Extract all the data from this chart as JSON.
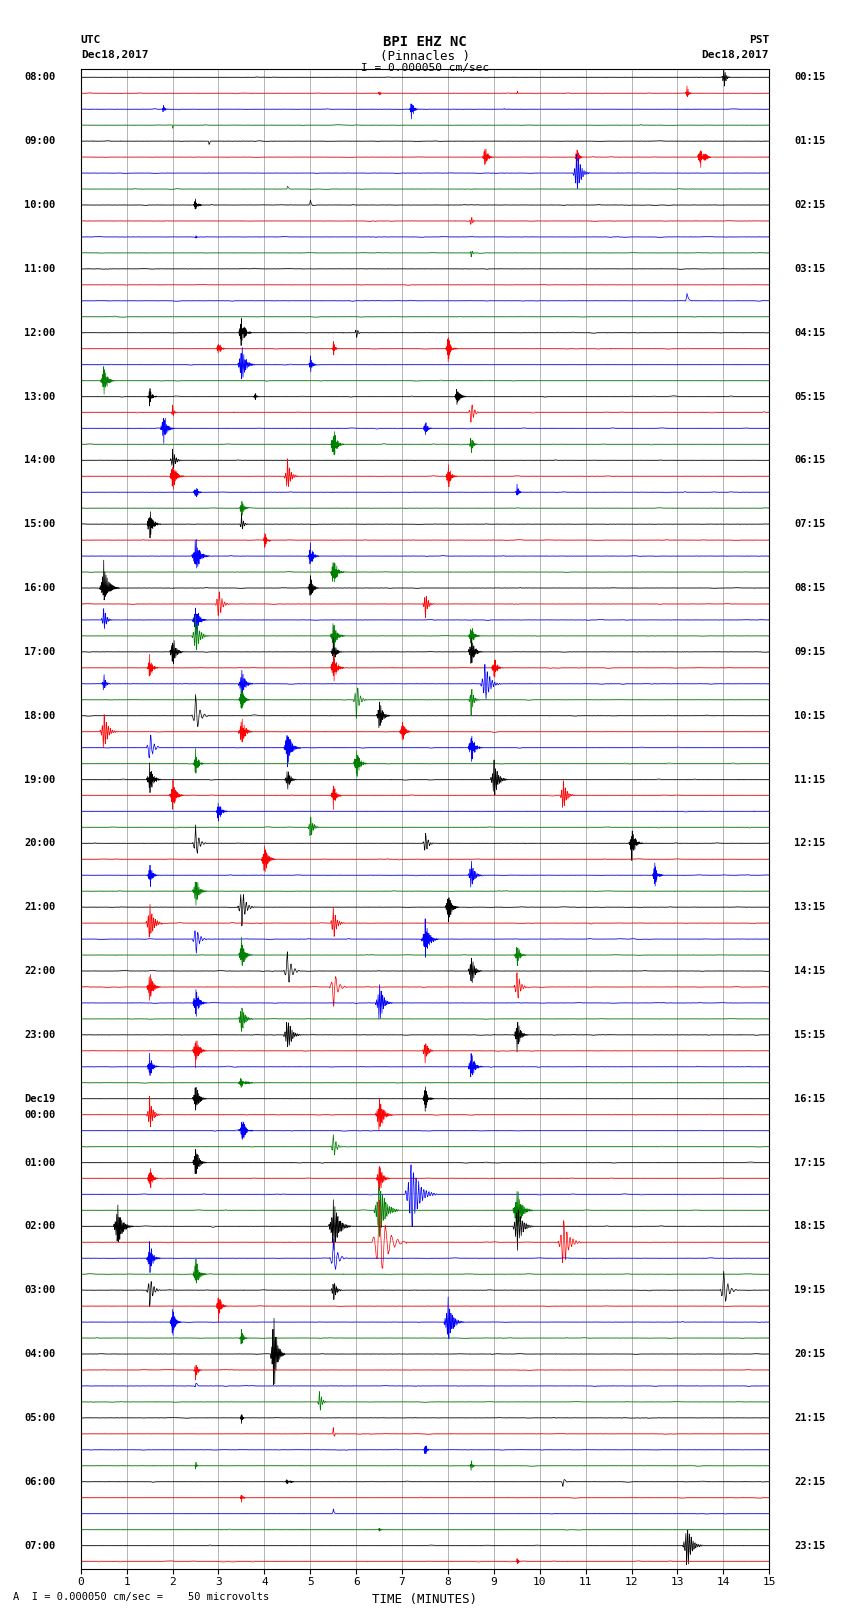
{
  "title_line1": "BPI EHZ NC",
  "title_line2": "(Pinnacles )",
  "scale_text": "I = 0.000050 cm/sec",
  "left_header_line1": "UTC",
  "left_header_line2": "Dec18,2017",
  "right_header_line1": "PST",
  "right_header_line2": "Dec18,2017",
  "footer_text": "A  I = 0.000050 cm/sec =    50 microvolts",
  "xlabel": "TIME (MINUTES)",
  "left_times": [
    "08:00",
    "",
    "",
    "",
    "09:00",
    "",
    "",
    "",
    "10:00",
    "",
    "",
    "",
    "11:00",
    "",
    "",
    "",
    "12:00",
    "",
    "",
    "",
    "13:00",
    "",
    "",
    "",
    "14:00",
    "",
    "",
    "",
    "15:00",
    "",
    "",
    "",
    "16:00",
    "",
    "",
    "",
    "17:00",
    "",
    "",
    "",
    "18:00",
    "",
    "",
    "",
    "19:00",
    "",
    "",
    "",
    "20:00",
    "",
    "",
    "",
    "21:00",
    "",
    "",
    "",
    "22:00",
    "",
    "",
    "",
    "23:00",
    "",
    "",
    "",
    "Dec19",
    "00:00",
    "",
    "",
    "01:00",
    "",
    "",
    "",
    "02:00",
    "",
    "",
    "",
    "03:00",
    "",
    "",
    "",
    "04:00",
    "",
    "",
    "",
    "05:00",
    "",
    "",
    "",
    "06:00",
    "",
    "",
    "",
    "07:00",
    ""
  ],
  "right_times": [
    "00:15",
    "",
    "",
    "",
    "01:15",
    "",
    "",
    "",
    "02:15",
    "",
    "",
    "",
    "03:15",
    "",
    "",
    "",
    "04:15",
    "",
    "",
    "",
    "05:15",
    "",
    "",
    "",
    "06:15",
    "",
    "",
    "",
    "07:15",
    "",
    "",
    "",
    "08:15",
    "",
    "",
    "",
    "09:15",
    "",
    "",
    "",
    "10:15",
    "",
    "",
    "",
    "11:15",
    "",
    "",
    "",
    "12:15",
    "",
    "",
    "",
    "13:15",
    "",
    "",
    "",
    "14:15",
    "",
    "",
    "",
    "15:15",
    "",
    "",
    "",
    "16:15",
    "",
    "",
    "",
    "17:15",
    "",
    "",
    "",
    "18:15",
    "",
    "",
    "",
    "19:15",
    "",
    "",
    "",
    "20:15",
    "",
    "",
    "",
    "21:15",
    "",
    "",
    "",
    "22:15",
    "",
    "",
    "",
    "23:15",
    ""
  ],
  "num_rows": 94,
  "colors": [
    "black",
    "red",
    "blue",
    "green"
  ],
  "bg_color": "#ffffff",
  "grid_color": "#999999",
  "seed": 12345,
  "events": [
    {
      "row": 0,
      "t": 14.0,
      "amp": 1.8,
      "dur": 0.15
    },
    {
      "row": 1,
      "t": 6.5,
      "amp": 0.6,
      "dur": 0.08
    },
    {
      "row": 1,
      "t": 9.5,
      "amp": 0.5,
      "dur": 0.06
    },
    {
      "row": 1,
      "t": 13.2,
      "amp": 1.2,
      "dur": 0.12
    },
    {
      "row": 2,
      "t": 1.8,
      "amp": 0.8,
      "dur": 0.1
    },
    {
      "row": 2,
      "t": 7.2,
      "amp": 1.5,
      "dur": 0.18
    },
    {
      "row": 3,
      "t": 2.0,
      "amp": 0.5,
      "dur": 0.06
    },
    {
      "row": 4,
      "t": 2.8,
      "amp": 0.6,
      "dur": 0.08
    },
    {
      "row": 5,
      "t": 8.8,
      "amp": 1.8,
      "dur": 0.2
    },
    {
      "row": 5,
      "t": 10.8,
      "amp": 1.5,
      "dur": 0.15
    },
    {
      "row": 5,
      "t": 13.5,
      "amp": 2.5,
      "dur": 0.25
    },
    {
      "row": 6,
      "t": 10.8,
      "amp": 3.5,
      "dur": 0.3
    },
    {
      "row": 7,
      "t": 4.5,
      "amp": 0.7,
      "dur": 0.08
    },
    {
      "row": 8,
      "t": 2.5,
      "amp": 1.5,
      "dur": 0.15
    },
    {
      "row": 8,
      "t": 5.0,
      "amp": 0.8,
      "dur": 0.1
    },
    {
      "row": 9,
      "t": 8.5,
      "amp": 1.0,
      "dur": 0.12
    },
    {
      "row": 10,
      "t": 2.5,
      "amp": 0.5,
      "dur": 0.06
    },
    {
      "row": 11,
      "t": 8.5,
      "amp": 0.8,
      "dur": 0.1
    },
    {
      "row": 14,
      "t": 13.2,
      "amp": 1.2,
      "dur": 0.12
    },
    {
      "row": 16,
      "t": 3.5,
      "amp": 2.5,
      "dur": 0.25
    },
    {
      "row": 16,
      "t": 6.0,
      "amp": 1.0,
      "dur": 0.12
    },
    {
      "row": 17,
      "t": 3.0,
      "amp": 1.5,
      "dur": 0.15
    },
    {
      "row": 17,
      "t": 5.5,
      "amp": 1.2,
      "dur": 0.12
    },
    {
      "row": 17,
      "t": 8.0,
      "amp": 2.0,
      "dur": 0.2
    },
    {
      "row": 18,
      "t": 3.5,
      "amp": 3.0,
      "dur": 0.3
    },
    {
      "row": 18,
      "t": 5.0,
      "amp": 1.5,
      "dur": 0.15
    },
    {
      "row": 19,
      "t": 0.5,
      "amp": 2.5,
      "dur": 0.25
    },
    {
      "row": 20,
      "t": 1.5,
      "amp": 1.5,
      "dur": 0.18
    },
    {
      "row": 20,
      "t": 3.8,
      "amp": 0.8,
      "dur": 0.1
    },
    {
      "row": 20,
      "t": 8.2,
      "amp": 1.8,
      "dur": 0.2
    },
    {
      "row": 21,
      "t": 2.0,
      "amp": 1.0,
      "dur": 0.12
    },
    {
      "row": 21,
      "t": 8.5,
      "amp": 2.0,
      "dur": 0.2
    },
    {
      "row": 22,
      "t": 1.8,
      "amp": 2.5,
      "dur": 0.25
    },
    {
      "row": 22,
      "t": 7.5,
      "amp": 1.5,
      "dur": 0.15
    },
    {
      "row": 23,
      "t": 5.5,
      "amp": 2.5,
      "dur": 0.25
    },
    {
      "row": 23,
      "t": 8.5,
      "amp": 1.5,
      "dur": 0.15
    },
    {
      "row": 24,
      "t": 2.0,
      "amp": 2.0,
      "dur": 0.2
    },
    {
      "row": 25,
      "t": 2.0,
      "amp": 2.5,
      "dur": 0.25
    },
    {
      "row": 25,
      "t": 4.5,
      "amp": 2.5,
      "dur": 0.25
    },
    {
      "row": 25,
      "t": 8.0,
      "amp": 2.0,
      "dur": 0.2
    },
    {
      "row": 26,
      "t": 2.5,
      "amp": 1.5,
      "dur": 0.15
    },
    {
      "row": 26,
      "t": 9.5,
      "amp": 1.2,
      "dur": 0.12
    },
    {
      "row": 27,
      "t": 3.5,
      "amp": 1.8,
      "dur": 0.18
    },
    {
      "row": 28,
      "t": 1.5,
      "amp": 2.5,
      "dur": 0.25
    },
    {
      "row": 28,
      "t": 3.5,
      "amp": 1.5,
      "dur": 0.15
    },
    {
      "row": 29,
      "t": 4.0,
      "amp": 1.5,
      "dur": 0.15
    },
    {
      "row": 30,
      "t": 2.5,
      "amp": 3.0,
      "dur": 0.3
    },
    {
      "row": 30,
      "t": 5.0,
      "amp": 2.0,
      "dur": 0.2
    },
    {
      "row": 31,
      "t": 5.5,
      "amp": 2.5,
      "dur": 0.25
    },
    {
      "row": 32,
      "t": 0.5,
      "amp": 3.5,
      "dur": 0.35
    },
    {
      "row": 32,
      "t": 5.0,
      "amp": 2.0,
      "dur": 0.2
    },
    {
      "row": 33,
      "t": 3.0,
      "amp": 2.5,
      "dur": 0.25
    },
    {
      "row": 33,
      "t": 7.5,
      "amp": 2.0,
      "dur": 0.2
    },
    {
      "row": 34,
      "t": 0.5,
      "amp": 2.0,
      "dur": 0.2
    },
    {
      "row": 34,
      "t": 2.5,
      "amp": 2.5,
      "dur": 0.25
    },
    {
      "row": 35,
      "t": 2.5,
      "amp": 3.0,
      "dur": 0.3
    },
    {
      "row": 35,
      "t": 5.5,
      "amp": 2.5,
      "dur": 0.25
    },
    {
      "row": 35,
      "t": 8.5,
      "amp": 2.0,
      "dur": 0.2
    },
    {
      "row": 36,
      "t": 2.0,
      "amp": 2.5,
      "dur": 0.25
    },
    {
      "row": 36,
      "t": 5.5,
      "amp": 2.0,
      "dur": 0.2
    },
    {
      "row": 36,
      "t": 8.5,
      "amp": 2.5,
      "dur": 0.25
    },
    {
      "row": 37,
      "t": 1.5,
      "amp": 2.0,
      "dur": 0.2
    },
    {
      "row": 37,
      "t": 5.5,
      "amp": 2.5,
      "dur": 0.25
    },
    {
      "row": 37,
      "t": 9.0,
      "amp": 2.0,
      "dur": 0.2
    },
    {
      "row": 38,
      "t": 0.5,
      "amp": 1.5,
      "dur": 0.15
    },
    {
      "row": 38,
      "t": 3.5,
      "amp": 2.5,
      "dur": 0.25
    },
    {
      "row": 38,
      "t": 8.8,
      "amp": 3.5,
      "dur": 0.35
    },
    {
      "row": 39,
      "t": 3.5,
      "amp": 2.0,
      "dur": 0.2
    },
    {
      "row": 39,
      "t": 6.0,
      "amp": 2.5,
      "dur": 0.25
    },
    {
      "row": 39,
      "t": 8.5,
      "amp": 2.0,
      "dur": 0.2
    },
    {
      "row": 40,
      "t": 2.5,
      "amp": 3.0,
      "dur": 0.3
    },
    {
      "row": 40,
      "t": 6.5,
      "amp": 2.5,
      "dur": 0.25
    },
    {
      "row": 41,
      "t": 0.5,
      "amp": 3.0,
      "dur": 0.3
    },
    {
      "row": 41,
      "t": 3.5,
      "amp": 2.5,
      "dur": 0.25
    },
    {
      "row": 41,
      "t": 7.0,
      "amp": 2.0,
      "dur": 0.2
    },
    {
      "row": 42,
      "t": 1.5,
      "amp": 2.5,
      "dur": 0.25
    },
    {
      "row": 42,
      "t": 4.5,
      "amp": 3.0,
      "dur": 0.3
    },
    {
      "row": 42,
      "t": 8.5,
      "amp": 2.5,
      "dur": 0.25
    },
    {
      "row": 43,
      "t": 2.5,
      "amp": 2.0,
      "dur": 0.2
    },
    {
      "row": 43,
      "t": 6.0,
      "amp": 2.5,
      "dur": 0.25
    },
    {
      "row": 44,
      "t": 1.5,
      "amp": 2.5,
      "dur": 0.25
    },
    {
      "row": 44,
      "t": 4.5,
      "amp": 2.0,
      "dur": 0.2
    },
    {
      "row": 44,
      "t": 9.0,
      "amp": 3.0,
      "dur": 0.3
    },
    {
      "row": 45,
      "t": 2.0,
      "amp": 2.5,
      "dur": 0.25
    },
    {
      "row": 45,
      "t": 5.5,
      "amp": 2.0,
      "dur": 0.2
    },
    {
      "row": 45,
      "t": 10.5,
      "amp": 2.5,
      "dur": 0.25
    },
    {
      "row": 46,
      "t": 3.0,
      "amp": 2.0,
      "dur": 0.2
    },
    {
      "row": 47,
      "t": 5.0,
      "amp": 2.0,
      "dur": 0.2
    },
    {
      "row": 48,
      "t": 2.5,
      "amp": 2.5,
      "dur": 0.25
    },
    {
      "row": 48,
      "t": 7.5,
      "amp": 2.0,
      "dur": 0.2
    },
    {
      "row": 48,
      "t": 12.0,
      "amp": 2.5,
      "dur": 0.25
    },
    {
      "row": 49,
      "t": 4.0,
      "amp": 2.5,
      "dur": 0.25
    },
    {
      "row": 50,
      "t": 1.5,
      "amp": 2.0,
      "dur": 0.2
    },
    {
      "row": 50,
      "t": 8.5,
      "amp": 2.5,
      "dur": 0.25
    },
    {
      "row": 50,
      "t": 12.5,
      "amp": 2.0,
      "dur": 0.2
    },
    {
      "row": 51,
      "t": 2.5,
      "amp": 2.5,
      "dur": 0.25
    },
    {
      "row": 52,
      "t": 3.5,
      "amp": 3.0,
      "dur": 0.3
    },
    {
      "row": 52,
      "t": 8.0,
      "amp": 2.5,
      "dur": 0.25
    },
    {
      "row": 53,
      "t": 1.5,
      "amp": 3.0,
      "dur": 0.3
    },
    {
      "row": 53,
      "t": 5.5,
      "amp": 2.5,
      "dur": 0.25
    },
    {
      "row": 54,
      "t": 2.5,
      "amp": 2.5,
      "dur": 0.25
    },
    {
      "row": 54,
      "t": 7.5,
      "amp": 3.0,
      "dur": 0.3
    },
    {
      "row": 55,
      "t": 3.5,
      "amp": 2.5,
      "dur": 0.25
    },
    {
      "row": 55,
      "t": 9.5,
      "amp": 2.0,
      "dur": 0.2
    },
    {
      "row": 56,
      "t": 4.5,
      "amp": 3.0,
      "dur": 0.3
    },
    {
      "row": 56,
      "t": 8.5,
      "amp": 2.5,
      "dur": 0.25
    },
    {
      "row": 57,
      "t": 1.5,
      "amp": 2.5,
      "dur": 0.25
    },
    {
      "row": 57,
      "t": 5.5,
      "amp": 3.0,
      "dur": 0.3
    },
    {
      "row": 57,
      "t": 9.5,
      "amp": 2.5,
      "dur": 0.25
    },
    {
      "row": 58,
      "t": 2.5,
      "amp": 2.5,
      "dur": 0.25
    },
    {
      "row": 58,
      "t": 6.5,
      "amp": 3.0,
      "dur": 0.3
    },
    {
      "row": 59,
      "t": 3.5,
      "amp": 2.5,
      "dur": 0.25
    },
    {
      "row": 60,
      "t": 4.5,
      "amp": 3.0,
      "dur": 0.3
    },
    {
      "row": 60,
      "t": 9.5,
      "amp": 2.5,
      "dur": 0.25
    },
    {
      "row": 61,
      "t": 2.5,
      "amp": 2.5,
      "dur": 0.25
    },
    {
      "row": 61,
      "t": 7.5,
      "amp": 2.0,
      "dur": 0.2
    },
    {
      "row": 62,
      "t": 1.5,
      "amp": 2.0,
      "dur": 0.2
    },
    {
      "row": 62,
      "t": 8.5,
      "amp": 2.5,
      "dur": 0.25
    },
    {
      "row": 63,
      "t": 3.5,
      "amp": 2.5,
      "dur": 0.25
    },
    {
      "row": 64,
      "t": 2.5,
      "amp": 2.5,
      "dur": 0.25
    },
    {
      "row": 64,
      "t": 7.5,
      "amp": 2.0,
      "dur": 0.2
    },
    {
      "row": 65,
      "t": 1.5,
      "amp": 2.5,
      "dur": 0.25
    },
    {
      "row": 65,
      "t": 6.5,
      "amp": 3.0,
      "dur": 0.3
    },
    {
      "row": 66,
      "t": 3.5,
      "amp": 2.5,
      "dur": 0.25
    },
    {
      "row": 67,
      "t": 5.5,
      "amp": 2.0,
      "dur": 0.2
    },
    {
      "row": 68,
      "t": 2.5,
      "amp": 2.5,
      "dur": 0.25
    },
    {
      "row": 69,
      "t": 1.5,
      "amp": 2.0,
      "dur": 0.2
    },
    {
      "row": 69,
      "t": 6.5,
      "amp": 2.5,
      "dur": 0.25
    },
    {
      "row": 70,
      "t": 7.2,
      "amp": 5.5,
      "dur": 0.55
    },
    {
      "row": 71,
      "t": 6.5,
      "amp": 4.5,
      "dur": 0.45
    },
    {
      "row": 71,
      "t": 9.5,
      "amp": 3.5,
      "dur": 0.35
    },
    {
      "row": 72,
      "t": 0.8,
      "amp": 3.5,
      "dur": 0.35
    },
    {
      "row": 72,
      "t": 5.5,
      "amp": 4.0,
      "dur": 0.4
    },
    {
      "row": 72,
      "t": 9.5,
      "amp": 3.5,
      "dur": 0.35
    },
    {
      "row": 73,
      "t": 6.5,
      "amp": 6.0,
      "dur": 0.6
    },
    {
      "row": 73,
      "t": 10.5,
      "amp": 4.0,
      "dur": 0.4
    },
    {
      "row": 74,
      "t": 1.5,
      "amp": 2.5,
      "dur": 0.25
    },
    {
      "row": 74,
      "t": 5.5,
      "amp": 3.0,
      "dur": 0.3
    },
    {
      "row": 75,
      "t": 2.5,
      "amp": 2.5,
      "dur": 0.25
    },
    {
      "row": 76,
      "t": 1.5,
      "amp": 2.5,
      "dur": 0.25
    },
    {
      "row": 76,
      "t": 5.5,
      "amp": 2.0,
      "dur": 0.2
    },
    {
      "row": 76,
      "t": 14.0,
      "amp": 3.0,
      "dur": 0.3
    },
    {
      "row": 77,
      "t": 3.0,
      "amp": 2.0,
      "dur": 0.2
    },
    {
      "row": 78,
      "t": 2.0,
      "amp": 2.0,
      "dur": 0.2
    },
    {
      "row": 78,
      "t": 8.0,
      "amp": 3.5,
      "dur": 0.35
    },
    {
      "row": 79,
      "t": 3.5,
      "amp": 1.5,
      "dur": 0.15
    },
    {
      "row": 80,
      "t": 4.2,
      "amp": 7.0,
      "dur": 0.25
    },
    {
      "row": 81,
      "t": 2.5,
      "amp": 1.5,
      "dur": 0.15
    },
    {
      "row": 82,
      "t": 2.5,
      "amp": 1.0,
      "dur": 0.1
    },
    {
      "row": 83,
      "t": 5.2,
      "amp": 1.8,
      "dur": 0.18
    },
    {
      "row": 84,
      "t": 3.5,
      "amp": 1.0,
      "dur": 0.1
    },
    {
      "row": 85,
      "t": 5.5,
      "amp": 1.0,
      "dur": 0.1
    },
    {
      "row": 86,
      "t": 7.5,
      "amp": 1.2,
      "dur": 0.12
    },
    {
      "row": 87,
      "t": 2.5,
      "amp": 0.8,
      "dur": 0.08
    },
    {
      "row": 87,
      "t": 8.5,
      "amp": 1.0,
      "dur": 0.1
    },
    {
      "row": 88,
      "t": 4.5,
      "amp": 1.5,
      "dur": 0.15
    },
    {
      "row": 88,
      "t": 10.5,
      "amp": 1.2,
      "dur": 0.12
    },
    {
      "row": 89,
      "t": 3.5,
      "amp": 1.0,
      "dur": 0.1
    },
    {
      "row": 90,
      "t": 5.5,
      "amp": 0.8,
      "dur": 0.08
    },
    {
      "row": 91,
      "t": 6.5,
      "amp": 0.8,
      "dur": 0.08
    },
    {
      "row": 92,
      "t": 13.2,
      "amp": 3.5,
      "dur": 0.35
    },
    {
      "row": 93,
      "t": 9.5,
      "amp": 0.8,
      "dur": 0.08
    }
  ]
}
